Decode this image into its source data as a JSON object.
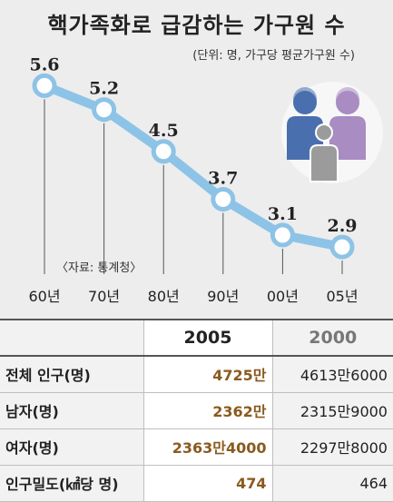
{
  "chart_data": {
    "type": "line",
    "title": "핵가족화로 급감하는 가구원 수",
    "unit_note": "(단위: 명, 가구당 평균가구원 수)",
    "source": "〈자료: 통계청〉",
    "categories": [
      "60년",
      "70년",
      "80년",
      "90년",
      "00년",
      "05년"
    ],
    "values": [
      5.6,
      5.2,
      4.5,
      3.7,
      3.1,
      2.9
    ],
    "value_labels": [
      "5.6",
      "5.2",
      "4.5",
      "3.7",
      "3.1",
      "2.9"
    ],
    "ylim": [
      2.5,
      6.0
    ],
    "grid": false,
    "colors": {
      "line": "#8dc3e6",
      "marker_fill": "#ffffff",
      "background": "#ededed",
      "icon_blue": "#4a6fae",
      "icon_purple": "#a88cc2",
      "icon_gray": "#9b9b9b"
    }
  },
  "table": {
    "columns": [
      "",
      "2005",
      "2000"
    ],
    "rows": [
      {
        "label": "전체 인구(명)",
        "v2005": "4725만",
        "v2000": "4613만6000"
      },
      {
        "label": "남자(명)",
        "v2005": "2362만",
        "v2000": "2315만9000"
      },
      {
        "label": "여자(명)",
        "v2005": "2363만4000",
        "v2000": "2297만8000"
      },
      {
        "label": "인구밀도(㎢당 명)",
        "v2005": "474",
        "v2000": "464"
      }
    ]
  }
}
